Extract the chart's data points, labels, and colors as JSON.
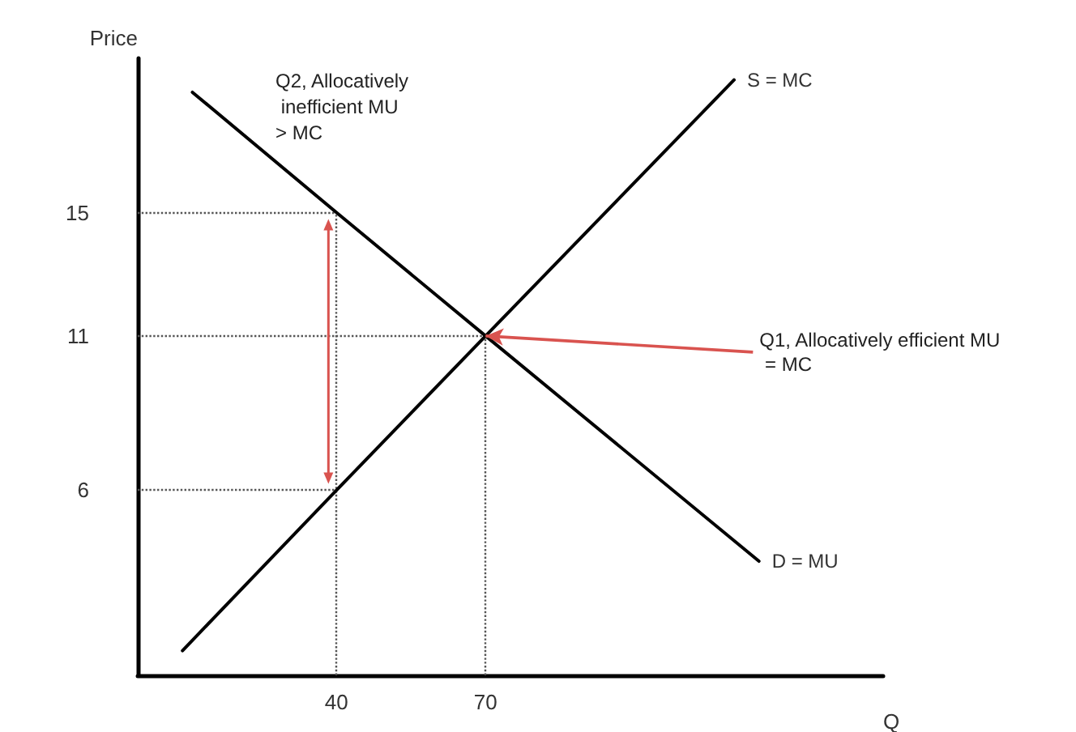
{
  "chart_data": {
    "type": "line",
    "xlabel": "Q",
    "ylabel": "Price",
    "xlim": [
      0,
      150
    ],
    "ylim": [
      0,
      20
    ],
    "xticks": [
      40,
      70
    ],
    "yticks": [
      6,
      11,
      15
    ],
    "series": [
      {
        "name": "S = MC",
        "color": "#000000",
        "x": [
          9,
          40,
          70,
          120
        ],
        "values": [
          0.8,
          6,
          11,
          19.3
        ]
      },
      {
        "name": "D = MU",
        "color": "#000000",
        "x": [
          11,
          40,
          70,
          125
        ],
        "values": [
          18.9,
          15,
          11,
          3.7
        ]
      }
    ],
    "ref_lines": [
      {
        "axis": "y",
        "value": 15,
        "line_style": "dotted"
      },
      {
        "axis": "y",
        "value": 11,
        "line_style": "dotted"
      },
      {
        "axis": "y",
        "value": 6,
        "line_style": "dotted"
      },
      {
        "axis": "x",
        "value": 40,
        "line_style": "dotted"
      },
      {
        "axis": "x",
        "value": 70,
        "line_style": "dotted"
      }
    ],
    "annotations": [
      "Q2, Allocatively inefficient MU > MC",
      {
        "text": "Q1, Allocatively efficient MU = MC",
        "x": 70,
        "y": 11
      }
    ],
    "grid": false,
    "legend": false,
    "marker": "none",
    "line_style": "solid"
  }
}
